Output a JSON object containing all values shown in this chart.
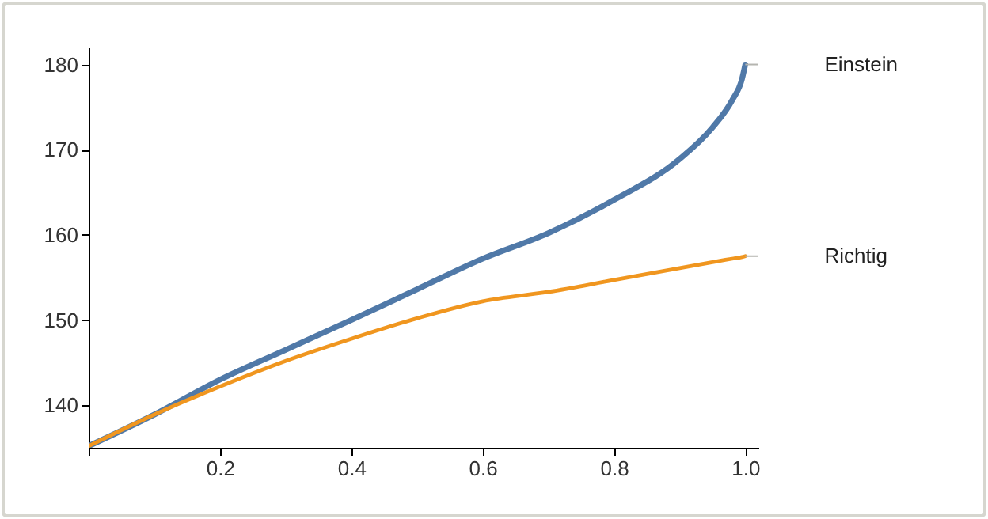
{
  "chart_data": {
    "type": "line",
    "x": [
      0,
      0.1,
      0.2,
      0.3,
      0.4,
      0.5,
      0.6,
      0.7,
      0.8,
      0.9,
      0.95,
      0.98,
      0.995,
      1.0
    ],
    "series": [
      {
        "name": "Einstein",
        "color": "#5079a8",
        "values": [
          135.2,
          138.9,
          143.0,
          146.5,
          150.0,
          153.6,
          157.2,
          160.2,
          164.1,
          168.9,
          172.6,
          175.8,
          178.3,
          180.0
        ]
      },
      {
        "name": "Richtig",
        "color": "#f0961f",
        "values": [
          135.2,
          138.9,
          142.2,
          145.2,
          147.8,
          150.2,
          152.2,
          153.3,
          154.7,
          156.1,
          156.8,
          157.2,
          157.4,
          157.5
        ]
      }
    ],
    "xlim": [
      0,
      1.02
    ],
    "xticks": [
      {
        "value": 0,
        "label": null
      },
      0.2,
      0.4,
      0.6,
      0.8,
      {
        "value": 1,
        "label": "1.0"
      }
    ],
    "ylim": [
      135,
      182
    ],
    "yticks": [
      140,
      150,
      160,
      170,
      180
    ],
    "grid": false,
    "legend": false,
    "marker": "none",
    "line_style": "solid"
  }
}
